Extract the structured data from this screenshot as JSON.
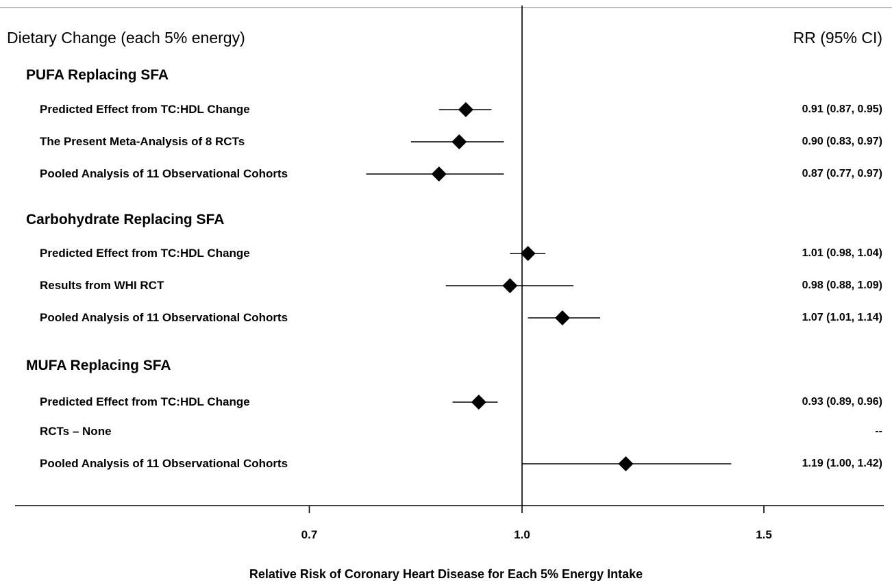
{
  "header": {
    "left": "Dietary Change (each 5% energy)",
    "right": "RR (95% CI)"
  },
  "chart_data": {
    "type": "forest",
    "xlabel": "Relative Risk of Coronary Heart Disease for Each 5% Energy Intake",
    "reference_value": 1.0,
    "x_ticks": [
      {
        "value": 0.7,
        "label": "0.7"
      },
      {
        "value": 1.0,
        "label": "1.0"
      },
      {
        "value": 1.5,
        "label": "1.5"
      }
    ],
    "groups": [
      {
        "title": "PUFA Replacing SFA",
        "rows": [
          {
            "label": "Predicted Effect from TC:HDL Change",
            "rr": 0.91,
            "lo": 0.87,
            "hi": 0.95,
            "ci_text": "0.91 (0.87, 0.95)"
          },
          {
            "label": "The Present Meta-Analysis of 8 RCTs",
            "rr": 0.9,
            "lo": 0.83,
            "hi": 0.97,
            "ci_text": "0.90 (0.83, 0.97)"
          },
          {
            "label": "Pooled Analysis of 11 Observational Cohorts",
            "rr": 0.87,
            "lo": 0.77,
            "hi": 0.97,
            "ci_text": "0.87 (0.77, 0.97)"
          }
        ]
      },
      {
        "title": "Carbohydrate Replacing SFA",
        "rows": [
          {
            "label": "Predicted Effect from TC:HDL Change",
            "rr": 1.01,
            "lo": 0.98,
            "hi": 1.04,
            "ci_text": "1.01 (0.98, 1.04)"
          },
          {
            "label": "Results from WHI RCT",
            "rr": 0.98,
            "lo": 0.88,
            "hi": 1.09,
            "ci_text": "0.98 (0.88, 1.09)"
          },
          {
            "label": "Pooled Analysis of 11 Observational Cohorts",
            "rr": 1.07,
            "lo": 1.01,
            "hi": 1.14,
            "ci_text": "1.07 (1.01, 1.14)"
          }
        ]
      },
      {
        "title": "MUFA Replacing SFA",
        "rows": [
          {
            "label": "Predicted Effect from TC:HDL Change",
            "rr": 0.93,
            "lo": 0.89,
            "hi": 0.96,
            "ci_text": "0.93 (0.89, 0.96)"
          },
          {
            "label": "RCTs – None",
            "rr": null,
            "lo": null,
            "hi": null,
            "ci_text": "--"
          },
          {
            "label": "Pooled Analysis of 11 Observational Cohorts",
            "rr": 1.19,
            "lo": 1.0,
            "hi": 1.42,
            "ci_text": "1.19 (1.00, 1.42)"
          }
        ]
      }
    ]
  }
}
